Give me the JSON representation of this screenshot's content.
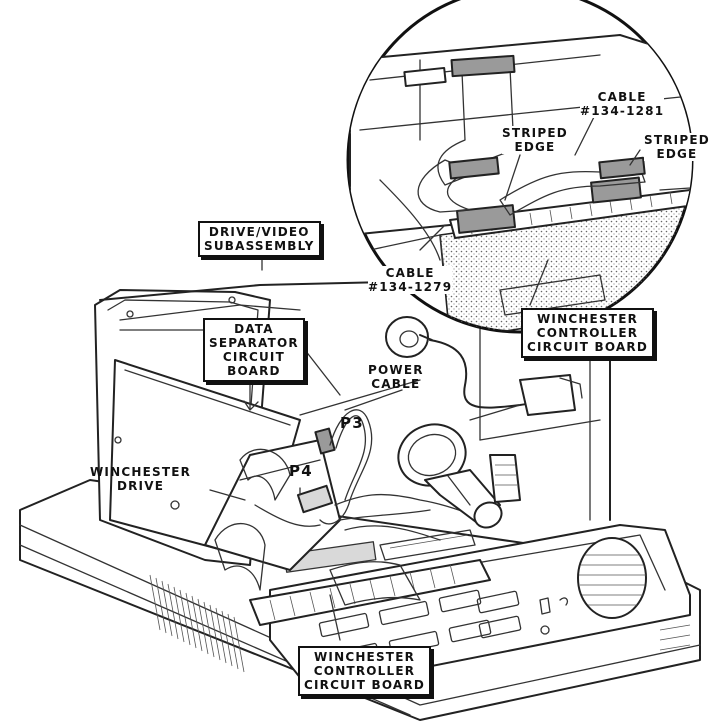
{
  "labels": {
    "drive_video": [
      "DRIVE/VIDEO",
      "SUBASSEMBLY"
    ],
    "data_separator": [
      "DATA",
      "SEPARATOR",
      "CIRCUIT",
      "BOARD"
    ],
    "power_cable": [
      "POWER",
      "CABLE"
    ],
    "p3": "P3",
    "p4": "P4",
    "winchester_drive": [
      "WINCHESTER",
      "DRIVE"
    ],
    "winchester_controller_bottom": [
      "WINCHESTER",
      "CONTROLLER",
      "CIRCUIT BOARD"
    ],
    "winchester_controller_inset": [
      "WINCHESTER",
      "CONTROLLER",
      "CIRCUIT BOARD"
    ],
    "cable_1281": [
      "CABLE",
      "#134-1281"
    ],
    "cable_1279": [
      "CABLE",
      "#134-1279"
    ],
    "striped_edge_left": [
      "STRIPED",
      "EDGE"
    ],
    "striped_edge_right": [
      "STRIPED",
      "EDGE"
    ]
  }
}
